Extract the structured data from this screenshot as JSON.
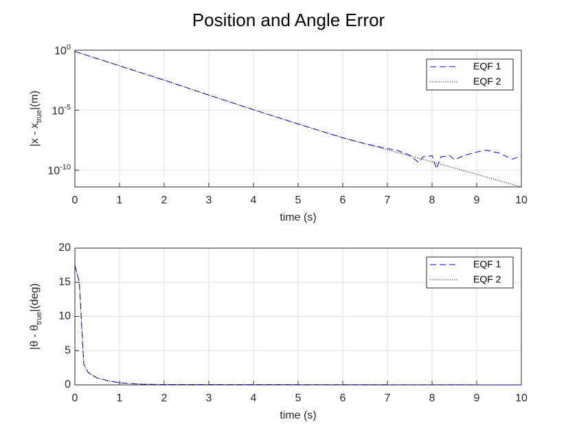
{
  "title": "Position and Angle Error",
  "chart_data": [
    {
      "type": "line",
      "ylabel": "|x - x_{true}|(m)",
      "xlabel": "time (s)",
      "xlim": [
        0,
        10
      ],
      "xticks": [
        0,
        1,
        2,
        3,
        4,
        5,
        6,
        7,
        8,
        9,
        10
      ],
      "ylim": [
        4e-12,
        1
      ],
      "log_y": true,
      "yticks": [
        {
          "value": 1,
          "label": "10^{0}"
        },
        {
          "value": 1e-05,
          "label": "10^{-5}"
        },
        {
          "value": 1e-10,
          "label": "10^{-10}"
        }
      ],
      "grid": true,
      "legend": "northeast",
      "series": [
        {
          "name": "EQF 1",
          "color": "#0000ff",
          "dash": "dashed",
          "x": [
            0,
            1,
            2,
            3,
            4,
            5,
            6,
            6.5,
            7,
            7.2,
            7.5,
            7.7,
            7.8,
            8,
            8.1,
            8.2,
            8.4,
            8.5,
            8.7,
            9,
            9.2,
            9.5,
            9.8,
            10
          ],
          "values": [
            0.79,
            0.05,
            0.0032,
            0.00018,
            1.1e-05,
            7.1e-07,
            5e-08,
            1.6e-08,
            6.3e-09,
            4.7e-09,
            1.8e-09,
            4.3e-10,
            1.3e-09,
            1.6e-09,
            1.3e-10,
            1.3e-09,
            1.6e-09,
            7.2e-10,
            1.6e-09,
            3.2e-09,
            4.7e-09,
            2.7e-09,
            8.3e-10,
            1.6e-09
          ]
        },
        {
          "name": "EQF 2",
          "color": "#000000",
          "dash": "dotted",
          "x": [
            0,
            1,
            2,
            3,
            4,
            5,
            6,
            7,
            8,
            9,
            10
          ],
          "values": [
            0.79,
            0.05,
            0.0032,
            0.00018,
            1.1e-05,
            7.1e-07,
            5e-08,
            5e-09,
            5e-10,
            4.5e-11,
            4e-12
          ]
        }
      ]
    },
    {
      "type": "line",
      "ylabel": "|θ - θ_{true}|(deg)",
      "xlabel": "time (s)",
      "xlim": [
        0,
        10
      ],
      "xticks": [
        0,
        1,
        2,
        3,
        4,
        5,
        6,
        7,
        8,
        9,
        10
      ],
      "ylim": [
        0,
        20
      ],
      "yticks": [
        0,
        5,
        10,
        15,
        20
      ],
      "grid": true,
      "legend": "northeast",
      "series": [
        {
          "name": "EQF 1",
          "color": "#0000ff",
          "dash": "dashed",
          "x": [
            0,
            0.1,
            0.2,
            0.3,
            0.5,
            0.75,
            1,
            1.5,
            2,
            10
          ],
          "values": [
            17.5,
            15,
            3,
            1.8,
            1,
            0.6,
            0.3,
            0.1,
            0.05,
            0
          ]
        },
        {
          "name": "EQF 2",
          "color": "#000000",
          "dash": "dotted",
          "x": [
            0,
            0.1,
            0.2,
            0.3,
            0.5,
            0.75,
            1,
            1.5,
            2,
            10
          ],
          "values": [
            17.5,
            15,
            3,
            1.8,
            1,
            0.6,
            0.3,
            0.1,
            0.05,
            0
          ]
        }
      ]
    }
  ]
}
